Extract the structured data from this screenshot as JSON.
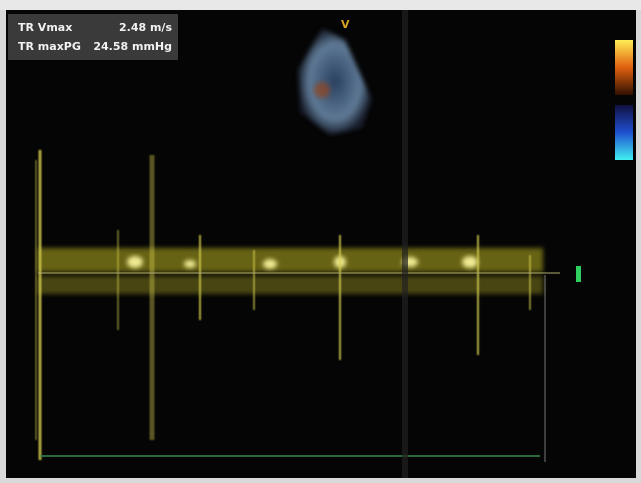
{
  "measurements": [
    {
      "label": "TR Vmax",
      "value": "2.48 m/s"
    },
    {
      "label": "TR maxPG",
      "value": "24.58 mmHg"
    }
  ],
  "sector_label": "V"
}
